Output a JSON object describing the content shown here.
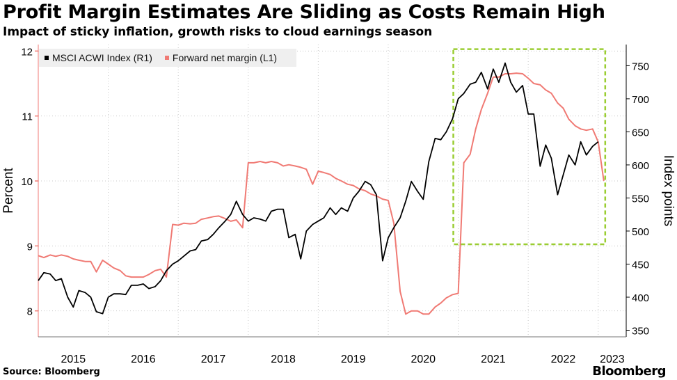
{
  "chart_data": {
    "type": "line",
    "title": "Profit Margin Estimates Are Sliding as Costs Remain High",
    "subtitle": "Impact of sticky inflation, growth risks to cloud earnings season",
    "source": "Source: Bloomberg",
    "brand": "Bloomberg",
    "left_axis": {
      "label": "Percent",
      "range": [
        7.6,
        12.1
      ],
      "ticks": [
        8,
        9,
        10,
        11,
        12
      ]
    },
    "right_axis": {
      "label": "Index points",
      "range": [
        340,
        782
      ],
      "ticks": [
        350,
        400,
        450,
        500,
        550,
        600,
        650,
        700,
        750
      ]
    },
    "x_axis": {
      "range": [
        2015.0,
        2023.4
      ],
      "tick_labels": [
        "2015",
        "2016",
        "2017",
        "2018",
        "2019",
        "2020",
        "2021",
        "2022",
        "2023"
      ]
    },
    "legend": [
      {
        "name": "MSCI ACWI Index (R1)",
        "color": "#000000"
      },
      {
        "name": "Forward net margin (L1)",
        "color": "#f07a74"
      }
    ],
    "highlight_box": {
      "x_range": [
        2020.93,
        2023.1
      ],
      "y_range_right": [
        480,
        775
      ],
      "color": "#9acd32"
    },
    "series": [
      {
        "name": "Forward net margin (L1)",
        "axis": "left",
        "color": "#f07a74",
        "x": [
          2015.0,
          2015.08,
          2015.17,
          2015.25,
          2015.33,
          2015.42,
          2015.5,
          2015.58,
          2015.67,
          2015.75,
          2015.83,
          2015.92,
          2016.0,
          2016.08,
          2016.17,
          2016.25,
          2016.33,
          2016.42,
          2016.5,
          2016.58,
          2016.67,
          2016.75,
          2016.83,
          2016.92,
          2017.0,
          2017.08,
          2017.17,
          2017.25,
          2017.33,
          2017.42,
          2017.5,
          2017.58,
          2017.67,
          2017.75,
          2017.83,
          2017.92,
          2018.0,
          2018.08,
          2018.17,
          2018.25,
          2018.33,
          2018.42,
          2018.5,
          2018.58,
          2018.67,
          2018.75,
          2018.83,
          2018.92,
          2019.0,
          2019.08,
          2019.17,
          2019.25,
          2019.33,
          2019.42,
          2019.5,
          2019.58,
          2019.67,
          2019.75,
          2019.83,
          2019.92,
          2020.0,
          2020.08,
          2020.17,
          2020.25,
          2020.33,
          2020.42,
          2020.5,
          2020.58,
          2020.67,
          2020.75,
          2020.83,
          2020.92,
          2021.0,
          2021.08,
          2021.17,
          2021.25,
          2021.33,
          2021.42,
          2021.5,
          2021.58,
          2021.67,
          2021.75,
          2021.83,
          2021.92,
          2022.0,
          2022.08,
          2022.17,
          2022.25,
          2022.33,
          2022.42,
          2022.5,
          2022.58,
          2022.67,
          2022.75,
          2022.83,
          2022.92,
          2023.0,
          2023.08
        ],
        "y": [
          8.85,
          8.82,
          8.86,
          8.84,
          8.86,
          8.84,
          8.8,
          8.78,
          8.76,
          8.76,
          8.6,
          8.78,
          8.72,
          8.66,
          8.62,
          8.54,
          8.52,
          8.52,
          8.52,
          8.56,
          8.62,
          8.64,
          8.52,
          9.33,
          9.32,
          9.35,
          9.34,
          9.35,
          9.41,
          9.43,
          9.45,
          9.46,
          9.42,
          9.38,
          9.4,
          9.28,
          10.28,
          10.28,
          10.3,
          10.28,
          10.3,
          10.28,
          10.23,
          10.25,
          10.23,
          10.21,
          10.18,
          9.95,
          10.15,
          10.13,
          10.1,
          10.04,
          10.0,
          9.95,
          9.93,
          9.88,
          9.85,
          9.8,
          9.77,
          9.72,
          9.7,
          9.35,
          8.3,
          7.95,
          8.0,
          8.0,
          7.95,
          7.95,
          8.06,
          8.12,
          8.2,
          8.25,
          8.27,
          10.28,
          10.41,
          10.8,
          11.1,
          11.35,
          11.6,
          11.6,
          11.65,
          11.65,
          11.66,
          11.65,
          11.58,
          11.5,
          11.48,
          11.4,
          11.35,
          11.2,
          11.12,
          10.95,
          10.85,
          10.8,
          10.78,
          10.8,
          10.6,
          10.0
        ]
      },
      {
        "name": "MSCI ACWI Index (R1)",
        "axis": "right",
        "color": "#000000",
        "x": [
          2015.0,
          2015.08,
          2015.17,
          2015.25,
          2015.33,
          2015.42,
          2015.5,
          2015.58,
          2015.67,
          2015.75,
          2015.83,
          2015.92,
          2016.0,
          2016.08,
          2016.17,
          2016.25,
          2016.33,
          2016.42,
          2016.5,
          2016.58,
          2016.67,
          2016.75,
          2016.83,
          2016.92,
          2017.0,
          2017.08,
          2017.17,
          2017.25,
          2017.33,
          2017.42,
          2017.5,
          2017.58,
          2017.67,
          2017.75,
          2017.83,
          2017.92,
          2018.0,
          2018.08,
          2018.17,
          2018.25,
          2018.33,
          2018.42,
          2018.5,
          2018.58,
          2018.67,
          2018.75,
          2018.83,
          2018.92,
          2019.0,
          2019.08,
          2019.17,
          2019.25,
          2019.33,
          2019.42,
          2019.5,
          2019.58,
          2019.67,
          2019.75,
          2019.83,
          2019.92,
          2020.0,
          2020.08,
          2020.17,
          2020.25,
          2020.33,
          2020.42,
          2020.5,
          2020.58,
          2020.67,
          2020.75,
          2020.83,
          2020.92,
          2021.0,
          2021.08,
          2021.17,
          2021.25,
          2021.33,
          2021.42,
          2021.5,
          2021.58,
          2021.67,
          2021.75,
          2021.83,
          2021.92,
          2022.0,
          2022.08,
          2022.17,
          2022.25,
          2022.33,
          2022.42,
          2022.5,
          2022.58,
          2022.67,
          2022.75,
          2022.83,
          2022.92,
          2023.0
        ],
        "y": [
          425,
          437,
          435,
          425,
          428,
          400,
          385,
          410,
          407,
          400,
          378,
          375,
          400,
          405,
          405,
          404,
          418,
          418,
          420,
          413,
          416,
          425,
          440,
          450,
          455,
          462,
          470,
          472,
          485,
          487,
          495,
          505,
          515,
          525,
          545,
          525,
          515,
          520,
          518,
          515,
          530,
          533,
          533,
          490,
          495,
          458,
          500,
          510,
          515,
          520,
          535,
          525,
          535,
          530,
          550,
          560,
          575,
          570,
          555,
          455,
          490,
          505,
          520,
          545,
          575,
          560,
          548,
          605,
          640,
          638,
          650,
          670,
          700,
          708,
          722,
          725,
          740,
          715,
          745,
          725,
          754,
          725,
          710,
          720,
          677,
          677,
          598,
          630,
          610,
          555,
          585,
          615,
          600,
          635,
          615,
          628,
          635
        ]
      }
    ]
  }
}
